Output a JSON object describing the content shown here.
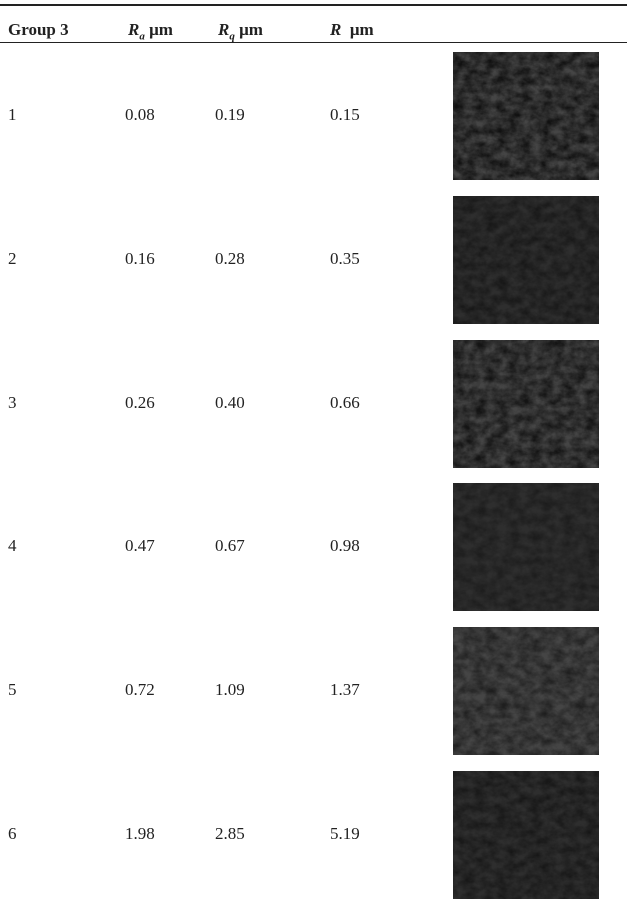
{
  "table": {
    "header": [
      {
        "text": "Group 3"
      },
      {
        "symbol": "R",
        "sub": "a",
        "unit": "μm"
      },
      {
        "symbol": "R",
        "sub": "q",
        "unit": "μm"
      },
      {
        "symbol": "R",
        "unit": "μm"
      }
    ],
    "rows": [
      [
        "1",
        "0.08",
        "0.19",
        "0.15"
      ],
      [
        "2",
        "0.16",
        "0.28",
        "0.35"
      ],
      [
        "3",
        "0.26",
        "0.40",
        "0.66"
      ],
      [
        "4",
        "0.47",
        "0.67",
        "0.98"
      ],
      [
        "5",
        "0.72",
        "1.09",
        "1.37"
      ],
      [
        "6",
        "1.98",
        "2.85",
        "5.19"
      ]
    ]
  }
}
